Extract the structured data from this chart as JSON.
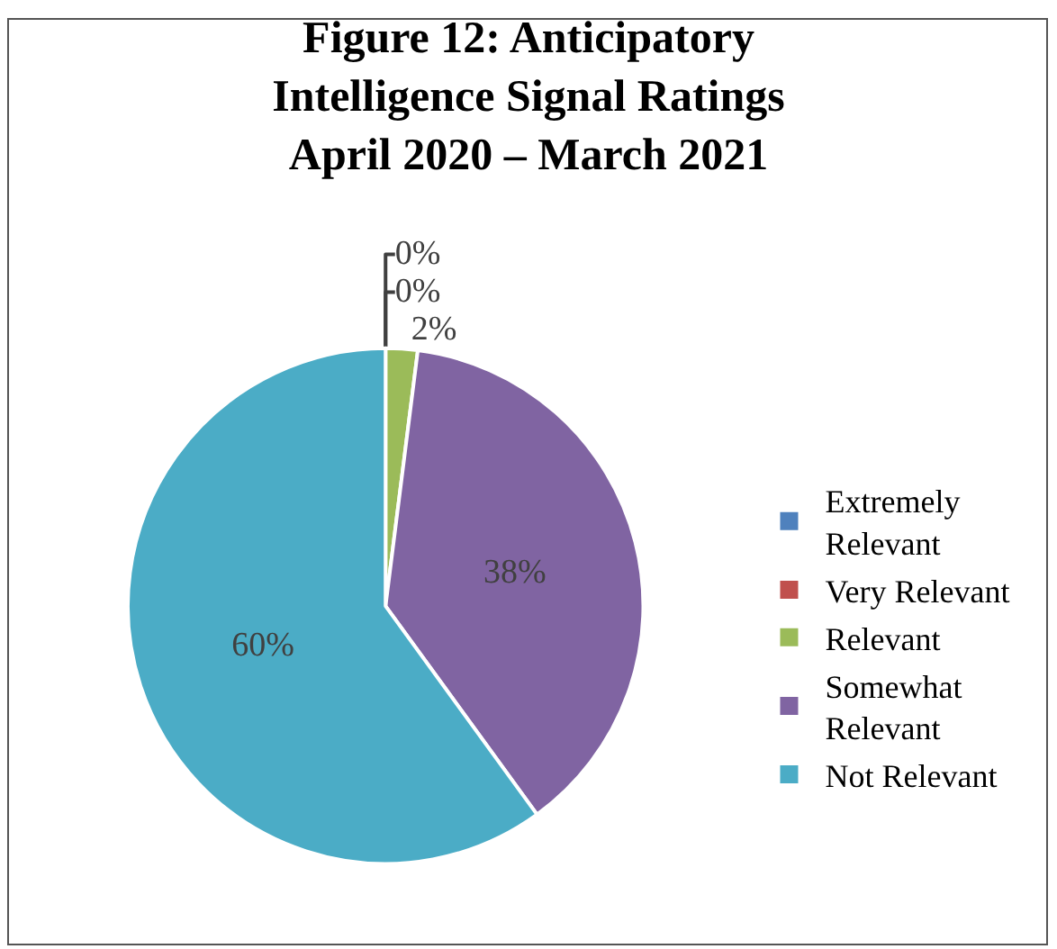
{
  "chart_data": {
    "type": "pie",
    "title": "Figure 12: Anticipatory Intelligence Signal Ratings April 2020 – March 2021",
    "categories": [
      "Extremely Relevant",
      "Very Relevant",
      "Relevant",
      "Somewhat Relevant",
      "Not Relevant"
    ],
    "values": [
      0,
      0,
      2,
      38,
      60
    ],
    "colors": [
      "#4f81bd",
      "#c0504d",
      "#9bbb59",
      "#8064a2",
      "#4bacc6"
    ],
    "value_labels": [
      "0%",
      "0%",
      "2%",
      "38%",
      "60%"
    ],
    "legend": "right"
  }
}
